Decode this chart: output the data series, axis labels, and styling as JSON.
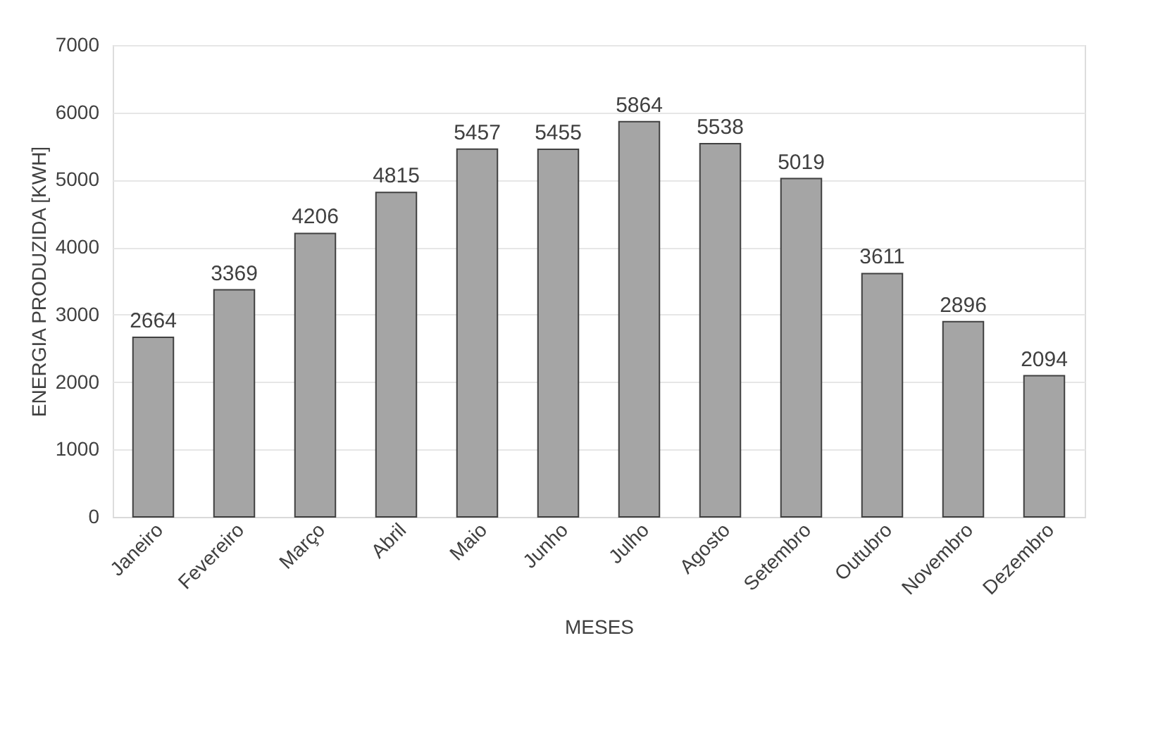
{
  "chart_data": {
    "type": "bar",
    "xlabel": "MESES",
    "ylabel": "ENERGIA PRODUZIDA [KWH]",
    "categories": [
      "Janeiro",
      "Fevereiro",
      "Março",
      "Abril",
      "Maio",
      "Junho",
      "Julho",
      "Agosto",
      "Setembro",
      "Outubro",
      "Novembro",
      "Dezembro"
    ],
    "values": [
      2664,
      3369,
      4206,
      4815,
      5457,
      5455,
      5864,
      5538,
      5019,
      3611,
      2896,
      2094
    ],
    "color": "#a5a5a5",
    "ylim": [
      0,
      7000
    ],
    "yticks": [
      0,
      1000,
      2000,
      3000,
      4000,
      5000,
      6000,
      7000
    ],
    "grid": "y",
    "data_labels": true
  }
}
